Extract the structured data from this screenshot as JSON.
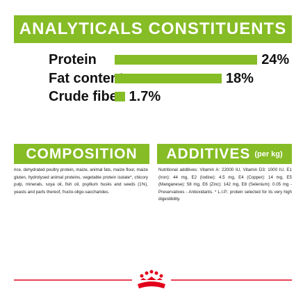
{
  "header": {
    "title": "ANALYTICALS CONSTITUENTS"
  },
  "nutrients": [
    {
      "label": "Protein",
      "value": 24,
      "value_label": "24%"
    },
    {
      "label": "Fat content",
      "value": 18,
      "value_label": "18%"
    },
    {
      "label": "Crude fiber",
      "value": 1.7,
      "value_label": "1.7%"
    }
  ],
  "composition": {
    "title": "COMPOSITION",
    "text": "rice, dehydrated poultry protein, maize, animal fats, maize flour, maize gluten, hydrolysed animal proteins, vegetable protein isolate*, chicory pulp, minerals, soya oil, fish oil, psyllium husks and seeds (1%), yeasts and parts thereof, fructo-oligo-saccharides."
  },
  "additives": {
    "title": "ADDITIVES",
    "subtitle": "(per kg)",
    "text": "Nutritional additives: Vitamin A: 22000 IU, Vitamin D3: 1000 IU, E1 (Iron): 44 mg, E2 (Iodine): 4.5 mg, E4 (Copper): 14 mg, E5 (Manganese): 58 mg, E6 (Zinc): 142 mg, E8 (Selenium): 0.05 mg - Preservatives - Antioxidants. * L.I.P.: protein selected for its very high digestibility."
  }
}
